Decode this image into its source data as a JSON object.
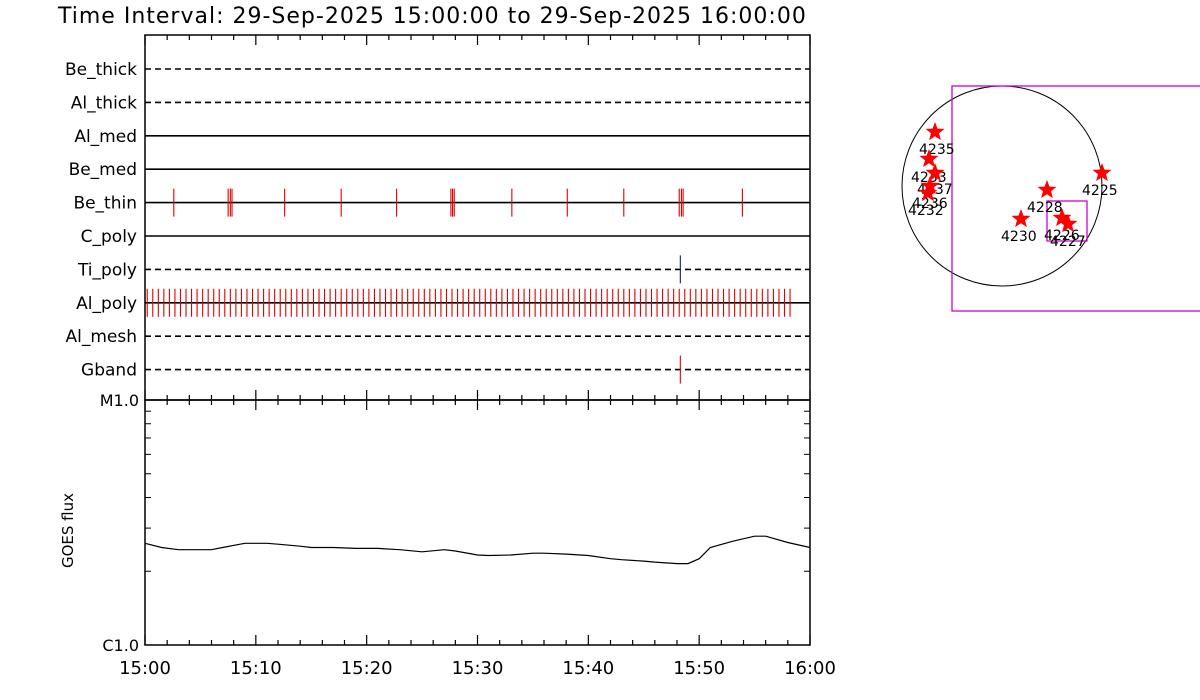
{
  "title": "Time Interval: 29-Sep-2025 15:00:00 to 29-Sep-2025 16:00:00",
  "colors": {
    "axis": "#000000",
    "event_red": "#e00000",
    "event_blue": "#1a1a80",
    "fov": "#cc00cc",
    "star": "#ff0000"
  },
  "chart_data": [
    {
      "type": "scatter",
      "subtype": "event-timeline",
      "x_unit": "minutes after 15:00",
      "xlim": [
        0,
        60
      ],
      "x_tick_labels": [
        "15:00",
        "15:10",
        "15:20",
        "15:30",
        "15:40",
        "15:50",
        "16:00"
      ],
      "x_ticks": [
        0,
        10,
        20,
        30,
        40,
        50,
        60
      ],
      "channels": [
        {
          "name": "Be_thick",
          "line": "dashed",
          "color": "#e00000",
          "events": []
        },
        {
          "name": "Al_thick",
          "line": "dashed",
          "color": "#e00000",
          "events": []
        },
        {
          "name": "Al_med",
          "line": "solid",
          "color": "#e00000",
          "events": []
        },
        {
          "name": "Be_med",
          "line": "solid",
          "color": "#e00000",
          "events": []
        },
        {
          "name": "Be_thin",
          "line": "solid",
          "color": "#e00000",
          "events": [
            2.6,
            7.5,
            7.7,
            7.85,
            12.6,
            17.7,
            22.7,
            27.6,
            27.75,
            27.9,
            33.1,
            38.1,
            43.2,
            48.2,
            48.4,
            48.55,
            53.9
          ]
        },
        {
          "name": "C_poly",
          "line": "solid",
          "color": "#e00000",
          "events": []
        },
        {
          "name": "Ti_poly",
          "line": "dashed",
          "color": "#1a1a80",
          "events": [
            48.3
          ]
        },
        {
          "name": "Al_poly",
          "line": "solid",
          "color": "#e00000",
          "dense_range": [
            0.2,
            58.3
          ],
          "dense_step": 0.5,
          "events": []
        },
        {
          "name": "Al_mesh",
          "line": "dashed",
          "color": "#e00000",
          "events": []
        },
        {
          "name": "Gband",
          "line": "dashed",
          "color": "#e00000",
          "events": [
            48.3
          ]
        }
      ]
    },
    {
      "type": "line",
      "ylabel": "GOES flux",
      "y_scale": "log",
      "ylim": [
        1e-06,
        1e-05
      ],
      "y_tick_labels": [
        "C1.0",
        "M1.0"
      ],
      "xlim": [
        0,
        60
      ],
      "x": [
        0,
        1.5,
        3,
        5,
        6,
        7,
        9,
        10,
        11,
        12,
        14,
        15,
        17,
        19,
        21,
        23,
        25,
        27,
        28,
        30,
        31,
        33,
        35,
        36,
        38,
        40,
        42,
        43,
        45,
        46,
        48,
        49,
        50,
        51,
        53,
        55,
        56,
        58,
        60
      ],
      "y": [
        2.6e-06,
        2.5e-06,
        2.45e-06,
        2.45e-06,
        2.45e-06,
        2.5e-06,
        2.6e-06,
        2.6e-06,
        2.6e-06,
        2.58e-06,
        2.53e-06,
        2.5e-06,
        2.5e-06,
        2.48e-06,
        2.48e-06,
        2.45e-06,
        2.4e-06,
        2.45e-06,
        2.42e-06,
        2.33e-06,
        2.32e-06,
        2.33e-06,
        2.37e-06,
        2.37e-06,
        2.35e-06,
        2.32e-06,
        2.25e-06,
        2.23e-06,
        2.2e-06,
        2.18e-06,
        2.15e-06,
        2.15e-06,
        2.25e-06,
        2.5e-06,
        2.65e-06,
        2.78e-06,
        2.78e-06,
        2.62e-06,
        2.5e-06
      ]
    },
    {
      "type": "scatter",
      "subtype": "solar-disk-map",
      "xlim": [
        -1.1,
        1.1
      ],
      "ylim": [
        -1.1,
        1.1
      ],
      "x_unit": "solar radii",
      "y_unit": "solar radii",
      "regions": [
        {
          "label": "4235",
          "x": -0.67,
          "y": 0.54
        },
        {
          "label": "4233",
          "x": -0.73,
          "y": 0.27
        },
        {
          "label": "4237",
          "x": -0.67,
          "y": 0.13
        },
        {
          "label": "4236",
          "x": -0.72,
          "y": 0.0
        },
        {
          "label": "4232",
          "x": -0.74,
          "y": -0.07
        },
        {
          "label": "4228",
          "x": 0.45,
          "y": -0.04
        },
        {
          "label": "4225",
          "x": 1.0,
          "y": 0.13
        },
        {
          "label": "4230",
          "x": 0.19,
          "y": -0.33
        },
        {
          "label": "4226",
          "x": 0.6,
          "y": -0.32
        },
        {
          "label": "4227",
          "x": 0.66,
          "y": -0.38
        }
      ],
      "fov_boxes": [
        {
          "x0": -0.5,
          "x1": 2.2,
          "y0": -1.25,
          "y1": 1.0,
          "color": "#cc00cc"
        },
        {
          "x0": 0.45,
          "x1": 0.85,
          "y0": -0.55,
          "y1": -0.15,
          "color": "#cc00cc"
        }
      ]
    }
  ]
}
